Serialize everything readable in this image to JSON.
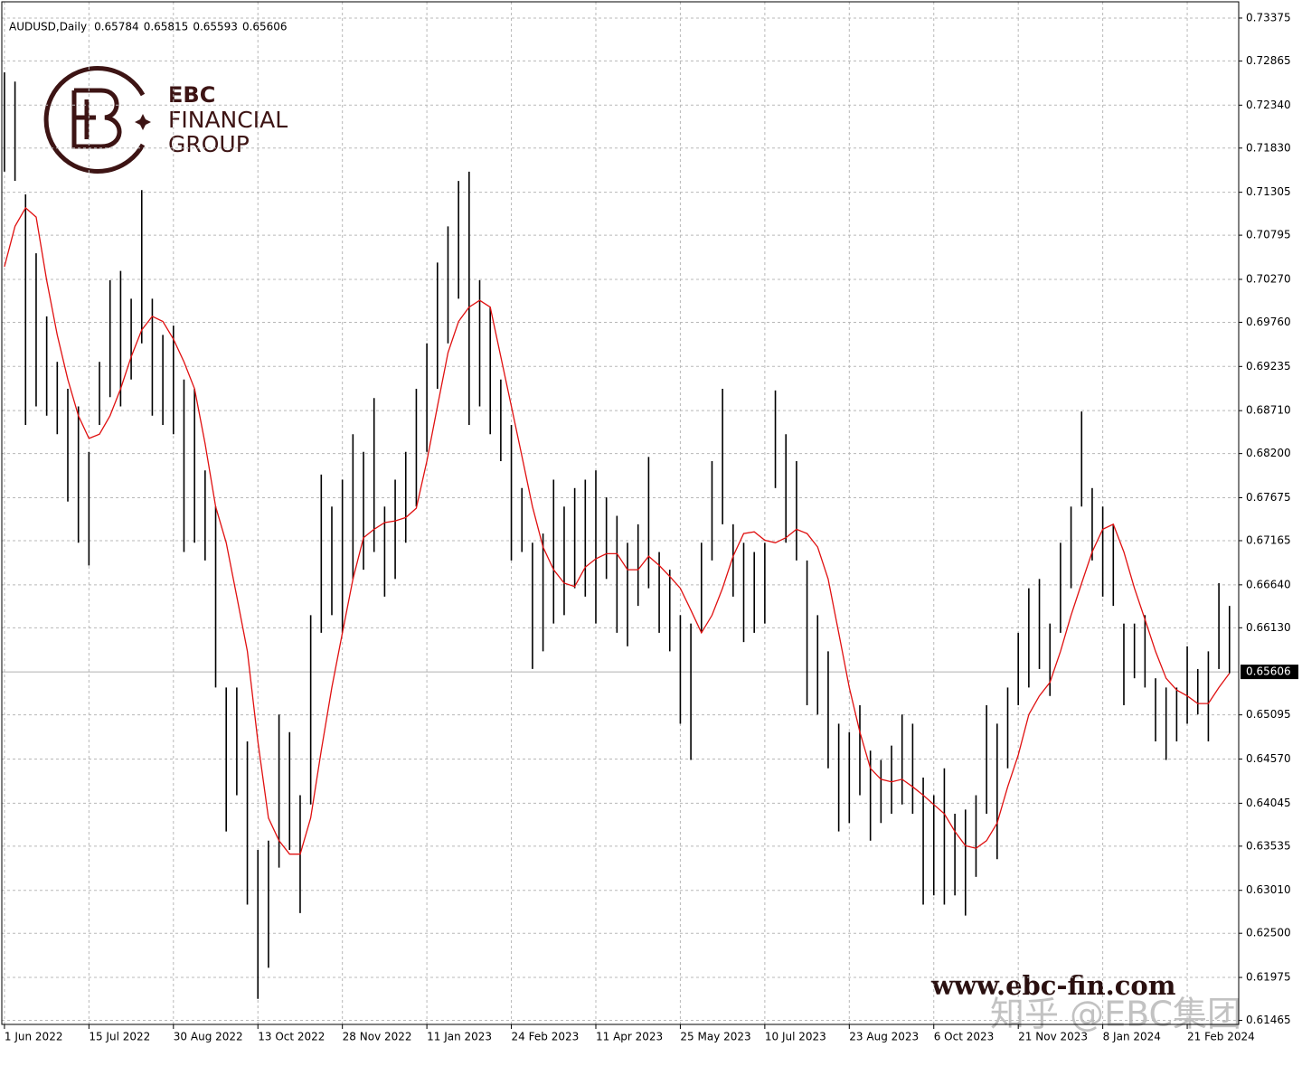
{
  "chart_data": {
    "type": "ohlc",
    "title": "AUDUSD,Daily",
    "header_values": [
      0.65784,
      0.65815,
      0.65593,
      0.65606
    ],
    "last_price": 0.65606,
    "bar_color": "#000000",
    "grid": true,
    "x": [
      0,
      4,
      8,
      12,
      16,
      20,
      24,
      28,
      32,
      36,
      40,
      44,
      48,
      52,
      56,
      60,
      64,
      68,
      72,
      76,
      80,
      84,
      88,
      92,
      96,
      100,
      104,
      108,
      112,
      116,
      120,
      124,
      128,
      132,
      136,
      140,
      144,
      148,
      152,
      156,
      160,
      164,
      168,
      172,
      176,
      180,
      184,
      188,
      192,
      196,
      200,
      204,
      208,
      212,
      216,
      220,
      224,
      228,
      232,
      236,
      240,
      244,
      248,
      252,
      256,
      260,
      264,
      268,
      272,
      276,
      280,
      284,
      288,
      292,
      296,
      300,
      304,
      308,
      312,
      316,
      320,
      324,
      328,
      332,
      336,
      340,
      344,
      348,
      352,
      356,
      360,
      364,
      368,
      372,
      376,
      380,
      384,
      388,
      392,
      396,
      400,
      404,
      408,
      412,
      416,
      420,
      424,
      428,
      432,
      436,
      440,
      444,
      448,
      452,
      456,
      460,
      464
    ],
    "high": [
      0.7273,
      0.7262,
      0.7128,
      0.7058,
      0.6983,
      0.6929,
      0.6897,
      0.6876,
      0.6822,
      0.6929,
      0.7026,
      0.7037,
      0.7004,
      0.7133,
      0.7004,
      0.6961,
      0.6972,
      0.6908,
      0.6897,
      0.68,
      0.6757,
      0.6542,
      0.6542,
      0.6478,
      0.6349,
      0.636,
      0.651,
      0.6489,
      0.6414,
      0.6628,
      0.6795,
      0.6757,
      0.6789,
      0.6843,
      0.6822,
      0.6886,
      0.6757,
      0.6789,
      0.6822,
      0.6897,
      0.6951,
      0.7047,
      0.709,
      0.7144,
      0.7155,
      0.7026,
      0.6994,
      0.6908,
      0.6854,
      0.6779,
      0.6714,
      0.6725,
      0.6789,
      0.6757,
      0.6779,
      0.6789,
      0.68,
      0.6768,
      0.6746,
      0.6714,
      0.6736,
      0.6816,
      0.6703,
      0.6682,
      0.6628,
      0.6618,
      0.6714,
      0.6811,
      0.6897,
      0.6736,
      0.6714,
      0.6703,
      0.6714,
      0.6895,
      0.6843,
      0.6811,
      0.6693,
      0.6628,
      0.6585,
      0.6499,
      0.6489,
      0.6521,
      0.6467,
      0.6456,
      0.6473,
      0.651,
      0.6499,
      0.6435,
      0.6414,
      0.6446,
      0.6392,
      0.6397,
      0.6414,
      0.6521,
      0.6499,
      0.6542,
      0.6607,
      0.666,
      0.6671,
      0.6618,
      0.6714,
      0.6757,
      0.687,
      0.6779,
      0.6757,
      0.6736,
      0.6618,
      0.6618,
      0.6628,
      0.6553,
      0.6542,
      0.6542,
      0.6591,
      0.6564,
      0.6585,
      0.6666,
      0.6639
    ],
    "low": [
      0.7155,
      0.7144,
      0.6854,
      0.6876,
      0.6865,
      0.6843,
      0.6763,
      0.6714,
      0.6687,
      0.6854,
      0.6887,
      0.6876,
      0.6908,
      0.6951,
      0.6865,
      0.6854,
      0.6843,
      0.6703,
      0.6714,
      0.6693,
      0.6542,
      0.6371,
      0.6414,
      0.6284,
      0.6172,
      0.6209,
      0.6328,
      0.6349,
      0.6274,
      0.6403,
      0.6607,
      0.6628,
      0.6607,
      0.6671,
      0.6682,
      0.6703,
      0.665,
      0.6671,
      0.6714,
      0.6757,
      0.6822,
      0.6897,
      0.6951,
      0.7004,
      0.6854,
      0.6876,
      0.6843,
      0.6811,
      0.6693,
      0.6703,
      0.6564,
      0.6585,
      0.6618,
      0.6628,
      0.666,
      0.665,
      0.6618,
      0.6671,
      0.6607,
      0.6591,
      0.6639,
      0.666,
      0.6607,
      0.6585,
      0.6499,
      0.6456,
      0.6607,
      0.6693,
      0.6736,
      0.665,
      0.6596,
      0.6607,
      0.6618,
      0.6779,
      0.6714,
      0.6693,
      0.6521,
      0.651,
      0.6446,
      0.6371,
      0.6381,
      0.6414,
      0.636,
      0.6381,
      0.6392,
      0.6403,
      0.6392,
      0.6284,
      0.6295,
      0.6284,
      0.6295,
      0.6271,
      0.6317,
      0.6392,
      0.6338,
      0.6446,
      0.6521,
      0.6542,
      0.6564,
      0.6532,
      0.6607,
      0.666,
      0.6757,
      0.6693,
      0.665,
      0.6639,
      0.6521,
      0.6553,
      0.6542,
      0.6478,
      0.6456,
      0.6478,
      0.6499,
      0.651,
      0.6478,
      0.6564,
      0.6559
    ],
    "ma": {
      "color": "#e01010",
      "values": [
        0.7042,
        0.709,
        0.7112,
        0.7101,
        0.7026,
        0.6961,
        0.6908,
        0.6865,
        0.6838,
        0.6843,
        0.6865,
        0.6897,
        0.6935,
        0.6967,
        0.6983,
        0.6977,
        0.6956,
        0.6929,
        0.6897,
        0.6832,
        0.6757,
        0.6714,
        0.665,
        0.6585,
        0.6478,
        0.6387,
        0.636,
        0.6344,
        0.6344,
        0.6387,
        0.6467,
        0.6542,
        0.6607,
        0.6671,
        0.672,
        0.673,
        0.6738,
        0.674,
        0.6744,
        0.6755,
        0.6811,
        0.6876,
        0.694,
        0.6977,
        0.6994,
        0.7002,
        0.6994,
        0.6935,
        0.6876,
        0.6817,
        0.6757,
        0.6709,
        0.6682,
        0.6666,
        0.6662,
        0.6685,
        0.6695,
        0.6701,
        0.6701,
        0.6682,
        0.6682,
        0.6698,
        0.6687,
        0.6674,
        0.666,
        0.6634,
        0.6607,
        0.6628,
        0.666,
        0.6698,
        0.6725,
        0.6727,
        0.6717,
        0.6714,
        0.672,
        0.673,
        0.6725,
        0.6709,
        0.6671,
        0.6607,
        0.6542,
        0.6489,
        0.6446,
        0.6433,
        0.643,
        0.6433,
        0.6424,
        0.6414,
        0.6403,
        0.6392,
        0.6371,
        0.6354,
        0.6351,
        0.636,
        0.6381,
        0.6424,
        0.6462,
        0.651,
        0.6532,
        0.6548,
        0.6585,
        0.6628,
        0.6666,
        0.6703,
        0.673,
        0.6736,
        0.6703,
        0.666,
        0.6623,
        0.6585,
        0.6553,
        0.6539,
        0.6532,
        0.6523,
        0.6523,
        0.6542,
        0.6559
      ]
    },
    "xlim": [
      -1,
      467.5
    ],
    "xticks": [
      {
        "value": 0,
        "label": "1 Jun 2022"
      },
      {
        "value": 32,
        "label": "15 Jul 2022"
      },
      {
        "value": 64,
        "label": "30 Aug 2022"
      },
      {
        "value": 96,
        "label": "13 Oct 2022"
      },
      {
        "value": 128,
        "label": "28 Nov 2022"
      },
      {
        "value": 160,
        "label": "11 Jan 2023"
      },
      {
        "value": 192,
        "label": "24 Feb 2023"
      },
      {
        "value": 224,
        "label": "11 Apr 2023"
      },
      {
        "value": 256,
        "label": "25 May 2023"
      },
      {
        "value": 288,
        "label": "10 Jul 2023"
      },
      {
        "value": 320,
        "label": "23 Aug 2023"
      },
      {
        "value": 352,
        "label": "6 Oct 2023"
      },
      {
        "value": 384,
        "label": "21 Nov 2023"
      },
      {
        "value": 416,
        "label": "8 Jan 2024"
      },
      {
        "value": 448,
        "label": "21 Feb 2024"
      }
    ],
    "ylim": [
      0.61417,
      0.73568
    ],
    "yticks": [
      0.73375,
      0.72865,
      {
        "value": 0.7234,
        "label": "0.72340"
      },
      {
        "value": 0.7183,
        "label": "0.71830"
      },
      0.71305,
      0.70795,
      {
        "value": 0.7027,
        "label": "0.70270"
      },
      {
        "value": 0.6976,
        "label": "0.69760"
      },
      0.69235,
      {
        "value": 0.6871,
        "label": "0.68710"
      },
      {
        "value": 0.682,
        "label": "0.68200"
      },
      0.67675,
      0.67165,
      {
        "value": 0.6664,
        "label": "0.66640"
      },
      {
        "value": 0.6613,
        "label": "0.66130"
      },
      0.65095,
      {
        "value": 0.6457,
        "label": "0.64570"
      },
      0.64045,
      0.63535,
      {
        "value": 0.6301,
        "label": "0.63010"
      },
      {
        "value": 0.625,
        "label": "0.62500"
      },
      0.61975,
      0.61465
    ],
    "watermarks": {
      "brand": "EBC",
      "brand_line2": "FINANCIAL",
      "brand_line3": "GROUP",
      "url": "www.ebc-fin.com",
      "social": "知乎 @EBC集团"
    }
  }
}
